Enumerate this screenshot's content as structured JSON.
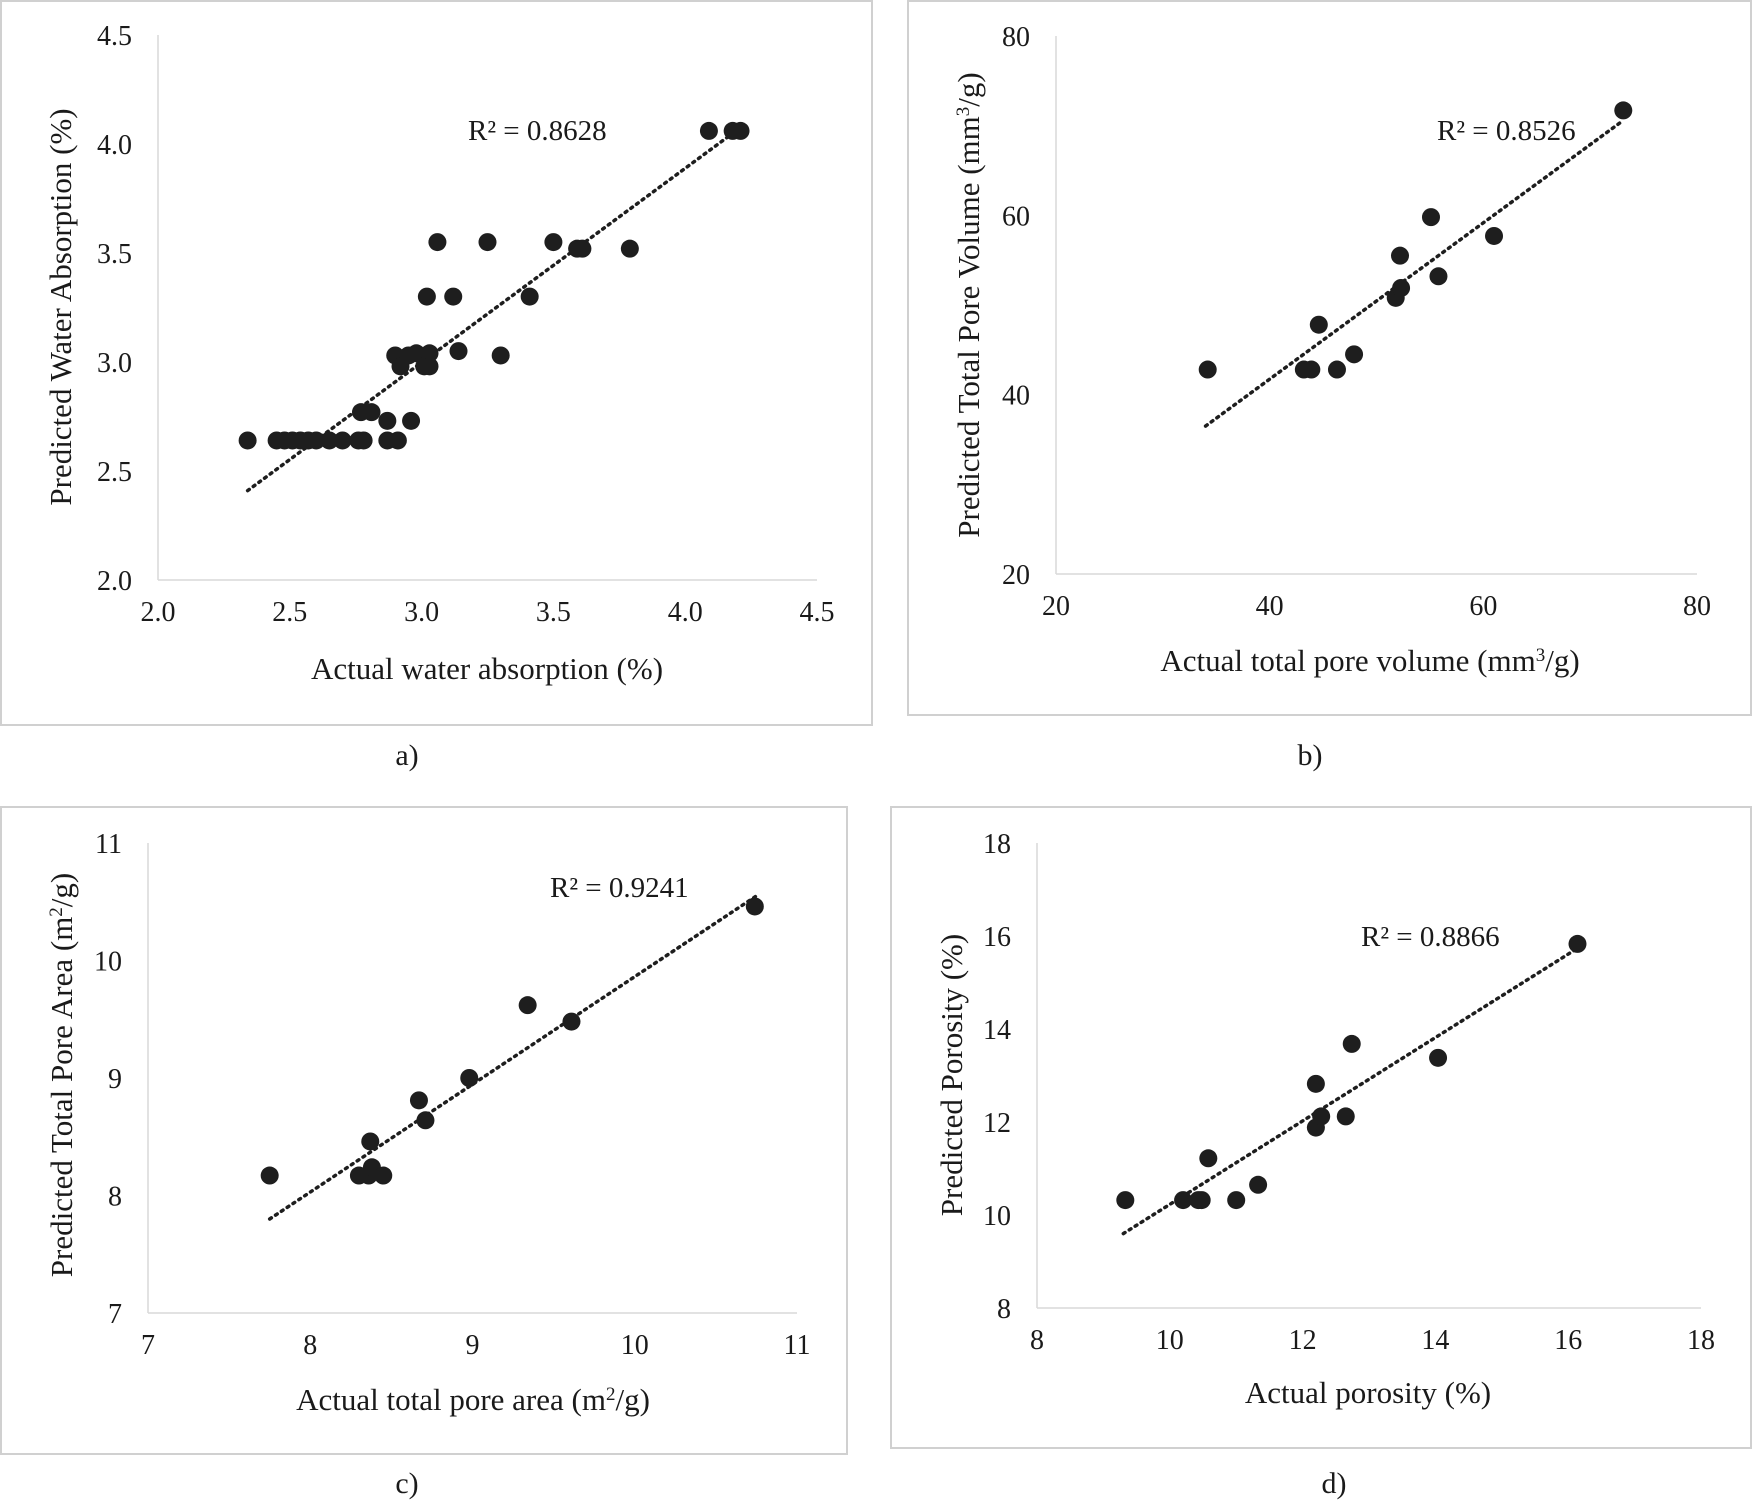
{
  "chart_data": [
    {
      "type": "scatter",
      "panel_label": "a)",
      "xlabel": "Actual water absorption (%)",
      "ylabel": "Predicted Water Absorption (%)",
      "xlim": [
        2.0,
        4.5
      ],
      "ylim": [
        2.0,
        4.5
      ],
      "xticks": [
        "2.0",
        "2.5",
        "3.0",
        "3.5",
        "4.0",
        "4.5"
      ],
      "yticks": [
        "2.0",
        "2.5",
        "3.0",
        "3.5",
        "4.0",
        "4.5"
      ],
      "r2_text": "R² = 0.8628",
      "trendline": [
        [
          2.34,
          2.41
        ],
        [
          4.17,
          4.04
        ]
      ],
      "points": [
        [
          2.34,
          2.64
        ],
        [
          2.45,
          2.64
        ],
        [
          2.48,
          2.64
        ],
        [
          2.51,
          2.64
        ],
        [
          2.54,
          2.64
        ],
        [
          2.57,
          2.64
        ],
        [
          2.6,
          2.64
        ],
        [
          2.65,
          2.64
        ],
        [
          2.7,
          2.64
        ],
        [
          2.76,
          2.64
        ],
        [
          2.78,
          2.64
        ],
        [
          2.87,
          2.64
        ],
        [
          2.91,
          2.64
        ],
        [
          2.77,
          2.77
        ],
        [
          2.81,
          2.77
        ],
        [
          2.87,
          2.73
        ],
        [
          2.96,
          2.73
        ],
        [
          2.9,
          3.03
        ],
        [
          2.92,
          2.98
        ],
        [
          2.95,
          3.03
        ],
        [
          2.98,
          3.04
        ],
        [
          3.01,
          2.98
        ],
        [
          3.03,
          3.04
        ],
        [
          3.03,
          2.98
        ],
        [
          3.14,
          3.05
        ],
        [
          3.3,
          3.03
        ],
        [
          3.02,
          3.3
        ],
        [
          3.12,
          3.3
        ],
        [
          3.41,
          3.3
        ],
        [
          3.06,
          3.55
        ],
        [
          3.25,
          3.55
        ],
        [
          3.5,
          3.55
        ],
        [
          3.59,
          3.52
        ],
        [
          3.61,
          3.52
        ],
        [
          3.79,
          3.52
        ],
        [
          4.09,
          4.06
        ],
        [
          4.18,
          4.06
        ],
        [
          4.21,
          4.06
        ]
      ]
    },
    {
      "type": "scatter",
      "panel_label": "b)",
      "xlabel_main": "Actual total pore volume (mm",
      "xlabel_sup": "3",
      "xlabel_tail": "/g)",
      "ylabel_main": "Predicted Total Pore Volume (mm",
      "ylabel_sup": "3",
      "ylabel_tail": "/g)",
      "xlim": [
        20,
        80
      ],
      "ylim": [
        20,
        80
      ],
      "xticks": [
        "20",
        "40",
        "60",
        "80"
      ],
      "yticks": [
        "20",
        "40",
        "60",
        "80"
      ],
      "r2_text": "R² = 0.8526",
      "trendline": [
        [
          34,
          36.5
        ],
        [
          73,
          70.5
        ]
      ],
      "points": [
        [
          34.2,
          42.8
        ],
        [
          43.2,
          42.8
        ],
        [
          43.9,
          42.8
        ],
        [
          46.3,
          42.8
        ],
        [
          47.9,
          44.5
        ],
        [
          44.6,
          47.8
        ],
        [
          51.8,
          50.8
        ],
        [
          52.3,
          51.9
        ],
        [
          52.2,
          55.5
        ],
        [
          55.8,
          53.2
        ],
        [
          55.1,
          59.8
        ],
        [
          61.0,
          57.7
        ],
        [
          73.1,
          71.7
        ]
      ]
    },
    {
      "type": "scatter",
      "panel_label": "c)",
      "xlabel_main": "Actual total pore area (m",
      "xlabel_sup": "2",
      "xlabel_tail": "/g)",
      "ylabel_main": "Predicted Total Pore Area (m",
      "ylabel_sup": "2",
      "ylabel_tail": "/g)",
      "xlim": [
        7,
        11
      ],
      "ylim": [
        7,
        11
      ],
      "xticks": [
        "7",
        "8",
        "9",
        "10",
        "11"
      ],
      "yticks": [
        "7",
        "8",
        "9",
        "10",
        "11"
      ],
      "r2_text": "R² = 0.9241",
      "trendline": [
        [
          7.75,
          7.8
        ],
        [
          10.75,
          10.55
        ]
      ],
      "points": [
        [
          7.75,
          8.17
        ],
        [
          8.3,
          8.17
        ],
        [
          8.36,
          8.17
        ],
        [
          8.38,
          8.24
        ],
        [
          8.45,
          8.17
        ],
        [
          8.37,
          8.46
        ],
        [
          8.67,
          8.81
        ],
        [
          8.71,
          8.64
        ],
        [
          8.98,
          9.0
        ],
        [
          9.34,
          9.62
        ],
        [
          9.61,
          9.48
        ],
        [
          10.74,
          10.46
        ]
      ]
    },
    {
      "type": "scatter",
      "panel_label": "d)",
      "xlabel": "Actual porosity (%)",
      "ylabel": "Predicted Porosity (%)",
      "xlim": [
        8,
        18
      ],
      "ylim": [
        8,
        18
      ],
      "xticks": [
        "8",
        "10",
        "12",
        "14",
        "16",
        "18"
      ],
      "yticks": [
        "8",
        "10",
        "12",
        "14",
        "16",
        "18"
      ],
      "r2_text": "R² = 0.8866",
      "trendline": [
        [
          9.3,
          9.6
        ],
        [
          16.1,
          15.7
        ]
      ],
      "points": [
        [
          9.33,
          10.32
        ],
        [
          10.2,
          10.32
        ],
        [
          10.43,
          10.32
        ],
        [
          10.48,
          10.32
        ],
        [
          11.0,
          10.32
        ],
        [
          11.33,
          10.65
        ],
        [
          10.58,
          11.22
        ],
        [
          12.2,
          11.88
        ],
        [
          12.28,
          12.12
        ],
        [
          12.65,
          12.12
        ],
        [
          12.2,
          12.82
        ],
        [
          12.74,
          13.68
        ],
        [
          14.04,
          13.38
        ],
        [
          16.14,
          15.83
        ]
      ]
    }
  ]
}
